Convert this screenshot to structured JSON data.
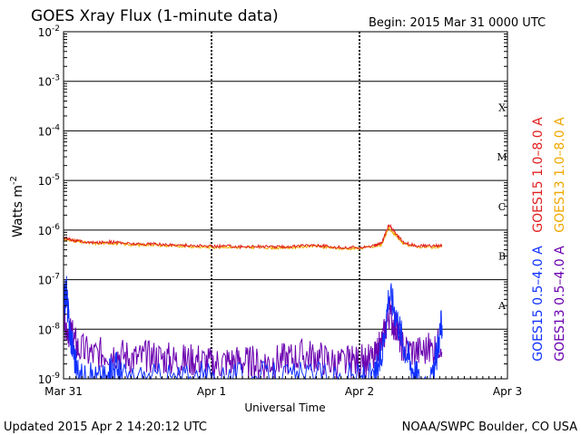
{
  "chart_data": {
    "type": "line",
    "title": "GOES Xray Flux (1-minute data)",
    "begin_label": "Begin:  2015 Mar 31 0000 UTC",
    "ylabel": "Watts m",
    "ylabel_sup": "-2",
    "xlabel": "Universal Time",
    "y_scale": "log",
    "ylim": [
      1e-09,
      0.01
    ],
    "y_ticks": [
      {
        "exp": "-2",
        "value": 0.01
      },
      {
        "exp": "-3",
        "value": 0.001
      },
      {
        "exp": "-4",
        "value": 0.0001
      },
      {
        "exp": "-5",
        "value": 1e-05
      },
      {
        "exp": "-6",
        "value": 1e-06
      },
      {
        "exp": "-7",
        "value": 1e-07
      },
      {
        "exp": "-8",
        "value": 1e-08
      },
      {
        "exp": "-9",
        "value": 1e-09
      }
    ],
    "x_range_days": [
      0,
      3
    ],
    "x_ticks": [
      {
        "label": "Mar 31",
        "day": 0
      },
      {
        "label": "Apr 1",
        "day": 1
      },
      {
        "label": "Apr 2",
        "day": 2
      },
      {
        "label": "Apr 3",
        "day": 3
      }
    ],
    "flare_classes": [
      {
        "label": "X",
        "value": 0.0003
      },
      {
        "label": "M",
        "value": 3e-05
      },
      {
        "label": "C",
        "value": 3e-06
      },
      {
        "label": "B",
        "value": 3e-07
      },
      {
        "label": "A",
        "value": 3e-08
      }
    ],
    "grid": true,
    "legend_position": "right",
    "series": [
      {
        "name": "GOES15 1.0–8.0 A",
        "color": "#e02020",
        "band": "long",
        "points": [
          [
            0,
            7e-07
          ],
          [
            0.05,
            6.5e-07
          ],
          [
            0.1,
            6e-07
          ],
          [
            0.2,
            5.5e-07
          ],
          [
            0.3,
            5.8e-07
          ],
          [
            0.4,
            5.5e-07
          ],
          [
            0.5,
            5.2e-07
          ],
          [
            0.6,
            5.3e-07
          ],
          [
            0.7,
            5e-07
          ],
          [
            0.8,
            5e-07
          ],
          [
            0.9,
            4.8e-07
          ],
          [
            1.0,
            4.7e-07
          ],
          [
            1.1,
            4.8e-07
          ],
          [
            1.2,
            4.6e-07
          ],
          [
            1.3,
            4.7e-07
          ],
          [
            1.4,
            4.6e-07
          ],
          [
            1.5,
            4.6e-07
          ],
          [
            1.6,
            4.8e-07
          ],
          [
            1.7,
            5e-07
          ],
          [
            1.8,
            4.6e-07
          ],
          [
            1.9,
            4.4e-07
          ],
          [
            2.0,
            4.5e-07
          ],
          [
            2.1,
            4.8e-07
          ],
          [
            2.15,
            5.5e-07
          ],
          [
            2.2,
            1.3e-06
          ],
          [
            2.25,
            8e-07
          ],
          [
            2.3,
            5.5e-07
          ],
          [
            2.4,
            4.8e-07
          ],
          [
            2.5,
            4.8e-07
          ],
          [
            2.56,
            5e-07
          ]
        ]
      },
      {
        "name": "GOES13 1.0–8.0 A",
        "color": "#f0a800",
        "band": "long",
        "points": [
          [
            0,
            6.6e-07
          ],
          [
            0.05,
            6.2e-07
          ],
          [
            0.1,
            5.8e-07
          ],
          [
            0.2,
            5.3e-07
          ],
          [
            0.3,
            5.5e-07
          ],
          [
            0.4,
            5.2e-07
          ],
          [
            0.5,
            5e-07
          ],
          [
            0.6,
            5.1e-07
          ],
          [
            0.7,
            4.8e-07
          ],
          [
            0.8,
            4.8e-07
          ],
          [
            0.9,
            4.6e-07
          ],
          [
            1.0,
            4.5e-07
          ],
          [
            1.1,
            4.6e-07
          ],
          [
            1.2,
            4.4e-07
          ],
          [
            1.3,
            4.5e-07
          ],
          [
            1.4,
            4.4e-07
          ],
          [
            1.5,
            4.4e-07
          ],
          [
            1.6,
            4.6e-07
          ],
          [
            1.7,
            4.8e-07
          ],
          [
            1.8,
            4.4e-07
          ],
          [
            1.9,
            4.2e-07
          ],
          [
            2.0,
            4.3e-07
          ],
          [
            2.1,
            4.6e-07
          ],
          [
            2.15,
            5.2e-07
          ],
          [
            2.2,
            1.1e-06
          ],
          [
            2.25,
            7.5e-07
          ],
          [
            2.3,
            5.2e-07
          ],
          [
            2.4,
            4.6e-07
          ],
          [
            2.5,
            4.5e-07
          ],
          [
            2.56,
            4.7e-07
          ]
        ]
      },
      {
        "name": "GOES15 0.5–4.0 A",
        "color": "#1030ff",
        "band": "short",
        "points": [
          [
            0,
            3e-08
          ],
          [
            0.02,
            6e-08
          ],
          [
            0.04,
            1e-08
          ],
          [
            0.06,
            5e-09
          ],
          [
            0.1,
            1e-09
          ],
          [
            0.2,
            1e-09
          ],
          [
            0.3,
            1e-09
          ],
          [
            0.35,
            2e-09
          ],
          [
            0.4,
            1e-09
          ],
          [
            0.6,
            1e-09
          ],
          [
            0.8,
            1e-09
          ],
          [
            1.0,
            1e-09
          ],
          [
            1.2,
            1e-09
          ],
          [
            1.4,
            1e-09
          ],
          [
            1.6,
            1e-09
          ],
          [
            1.8,
            1e-09
          ],
          [
            2.0,
            1e-09
          ],
          [
            2.1,
            1e-09
          ],
          [
            2.15,
            3e-09
          ],
          [
            2.2,
            6e-08
          ],
          [
            2.25,
            2e-08
          ],
          [
            2.3,
            5e-09
          ],
          [
            2.35,
            2e-09
          ],
          [
            2.4,
            1e-09
          ],
          [
            2.5,
            1e-09
          ],
          [
            2.54,
            8e-09
          ],
          [
            2.56,
            1.5e-08
          ]
        ]
      },
      {
        "name": "GOES13 0.5–4.0 A",
        "color": "#6a00b0",
        "band": "short",
        "points": [
          [
            0,
            1.5e-08
          ],
          [
            0.05,
            8e-09
          ],
          [
            0.1,
            4e-09
          ],
          [
            0.2,
            3e-09
          ],
          [
            0.3,
            3.5e-09
          ],
          [
            0.4,
            3e-09
          ],
          [
            0.5,
            2.5e-09
          ],
          [
            0.6,
            2.8e-09
          ],
          [
            0.7,
            2.5e-09
          ],
          [
            0.8,
            2.2e-09
          ],
          [
            0.9,
            2.5e-09
          ],
          [
            1.0,
            2e-09
          ],
          [
            1.1,
            2.2e-09
          ],
          [
            1.2,
            2.3e-09
          ],
          [
            1.3,
            2e-09
          ],
          [
            1.4,
            2.2e-09
          ],
          [
            1.5,
            2.5e-09
          ],
          [
            1.6,
            2.8e-09
          ],
          [
            1.7,
            3e-09
          ],
          [
            1.8,
            2.2e-09
          ],
          [
            1.9,
            2e-09
          ],
          [
            2.0,
            2.2e-09
          ],
          [
            2.1,
            2.5e-09
          ],
          [
            2.15,
            5e-09
          ],
          [
            2.2,
            2e-08
          ],
          [
            2.25,
            1e-08
          ],
          [
            2.3,
            4e-09
          ],
          [
            2.4,
            3.5e-09
          ],
          [
            2.5,
            4e-09
          ],
          [
            2.56,
            6e-09
          ]
        ]
      }
    ]
  },
  "footer": {
    "updated": "Updated 2015 Apr  2 14:20:12 UTC",
    "credit": "NOAA/SWPC Boulder, CO USA"
  }
}
